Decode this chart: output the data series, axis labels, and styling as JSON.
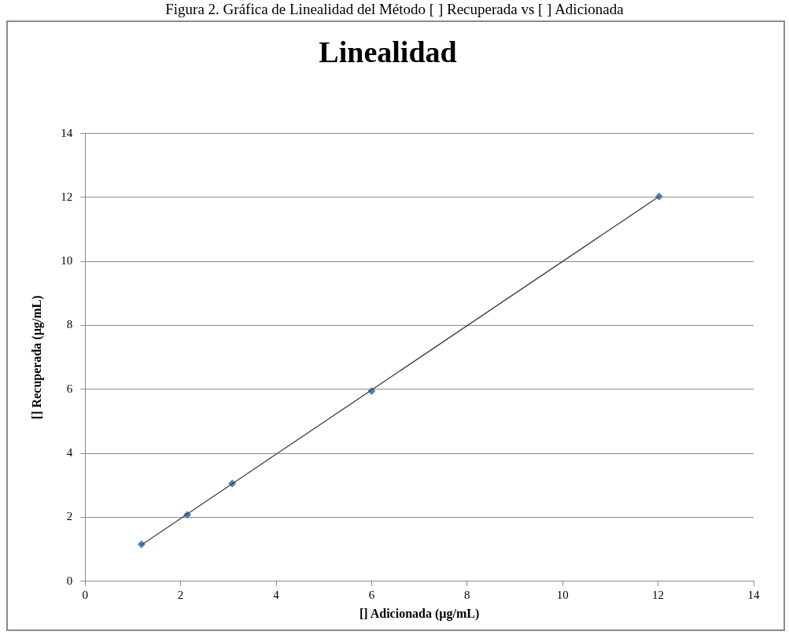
{
  "chart_data": {
    "type": "scatter",
    "title": "Linealidad",
    "xlabel": "[] Adicionada (µg/mL)",
    "ylabel": "[] Recuperada (µg/mL)",
    "annotations": [
      "Figura 2. Gráfica de Linealidad del Método [ ] Recuperada vs [ ] Adicionada"
    ],
    "x": [
      1.18,
      2.14,
      3.08,
      6.0,
      12.02
    ],
    "series": [
      {
        "color": "#4f81bd",
        "values": [
          1.16,
          2.08,
          3.06,
          5.95,
          12.03
        ],
        "marker": "diamond"
      },
      {
        "type": "line",
        "color": "#404040",
        "x": [
          1.18,
          12.02
        ],
        "values": [
          1.14,
          12.03
        ],
        "marker": "none",
        "line_style": "solid"
      }
    ],
    "xlim": [
      0,
      14
    ],
    "xticks": [
      0,
      2,
      4,
      6,
      8,
      10,
      12,
      14
    ],
    "ylim": [
      0,
      14
    ],
    "yticks": [
      0,
      2,
      4,
      6,
      8,
      10,
      12,
      14
    ],
    "grid": "y",
    "legend": false
  }
}
